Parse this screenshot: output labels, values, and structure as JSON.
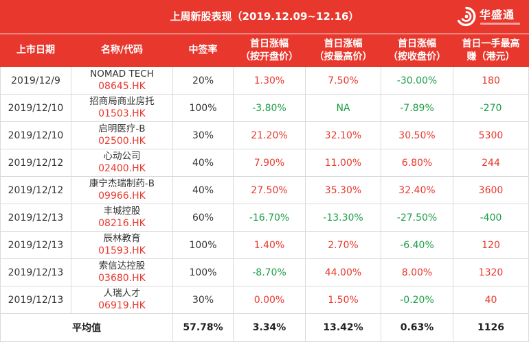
{
  "header": {
    "title": "上周新股表现（2019.12.09~12.16）",
    "logo_text": "华盛通",
    "logo_icon": "swirl-logo-icon"
  },
  "colors": {
    "brand_red": "#e8382d",
    "positive": "#e8382d",
    "negative": "#1b9e47",
    "code": "#e8382d",
    "text": "#333333",
    "grid": "#dadada"
  },
  "table": {
    "columns": [
      {
        "label": "上市日期"
      },
      {
        "label": "名称/代码"
      },
      {
        "label": "中签率"
      },
      {
        "label": "首日涨幅",
        "sub": "（按开盘价）"
      },
      {
        "label": "首日涨幅",
        "sub": "（按最高价）"
      },
      {
        "label": "首日涨幅",
        "sub": "（按收盘价）"
      },
      {
        "label": "首日一手最高",
        "sub": "赚（港元）"
      }
    ],
    "rows": [
      {
        "date": "2019/12/9",
        "name": "NOMAD TECH",
        "code": "08645.HK",
        "rate": "20%",
        "open": "1.30%",
        "high": "7.50%",
        "close": "-30.00%",
        "profit": "180"
      },
      {
        "date": "2019/12/10",
        "name": "招商局商业房托",
        "code": "01503.HK",
        "rate": "100%",
        "open": "-3.80%",
        "high": "NA",
        "close": "-7.89%",
        "profit": "-270"
      },
      {
        "date": "2019/12/10",
        "name": "启明医疗-B",
        "code": "02500.HK",
        "rate": "30%",
        "open": "21.20%",
        "high": "32.10%",
        "close": "30.50%",
        "profit": "5300"
      },
      {
        "date": "2019/12/12",
        "name": "心动公司",
        "code": "02400.HK",
        "rate": "40%",
        "open": "7.90%",
        "high": "11.00%",
        "close": "6.80%",
        "profit": "244"
      },
      {
        "date": "2019/12/12",
        "name": "康宁杰瑞制药-B",
        "code": "09966.HK",
        "rate": "40%",
        "open": "27.50%",
        "high": "35.30%",
        "close": "32.40%",
        "profit": "3600"
      },
      {
        "date": "2019/12/13",
        "name": "丰城控股",
        "code": "08216.HK",
        "rate": "60%",
        "open": "-16.70%",
        "high": "-13.30%",
        "close": "-27.50%",
        "profit": "-400"
      },
      {
        "date": "2019/12/13",
        "name": "辰林教育",
        "code": "01593.HK",
        "rate": "100%",
        "open": "1.40%",
        "high": "2.70%",
        "close": "-6.40%",
        "profit": "120"
      },
      {
        "date": "2019/12/13",
        "name": "索信达控股",
        "code": "03680.HK",
        "rate": "100%",
        "open": "-8.70%",
        "high": "44.00%",
        "close": "8.00%",
        "profit": "1320"
      },
      {
        "date": "2019/12/13",
        "name": "人瑞人才",
        "code": "06919.HK",
        "rate": "30%",
        "open": "0.00%",
        "high": "1.50%",
        "close": "-0.20%",
        "profit": "40"
      }
    ],
    "footer": {
      "label": "平均值",
      "rate": "57.78%",
      "open": "3.34%",
      "high": "13.42%",
      "close": "0.63%",
      "profit": "1126"
    }
  }
}
